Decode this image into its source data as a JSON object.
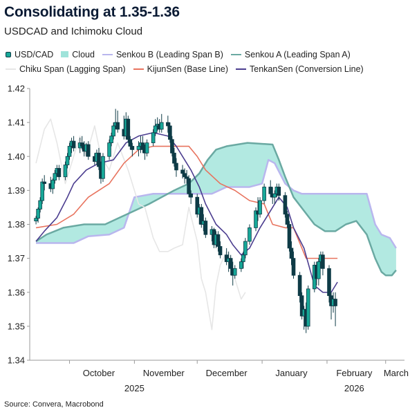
{
  "title": "Consolidating at 1.35-1.36",
  "subtitle": "USDCAD and Ichimoku Cloud",
  "source": "Source: Convera, Macrobond",
  "legend": [
    {
      "label": "USD/CAD",
      "kind": "candle",
      "color": "#17a898"
    },
    {
      "label": "Cloud",
      "kind": "fill",
      "color": "#9fe3da"
    },
    {
      "label": "Senkou B (Leading Span B)",
      "kind": "line",
      "color": "#b9b6ee"
    },
    {
      "label": "Senkou A (Leading Span A)",
      "kind": "line",
      "color": "#6aa9a2"
    },
    {
      "label": "Chiku Span (Lagging Span)",
      "kind": "line",
      "color": "#e6e6e6"
    },
    {
      "label": "KijunSen (Base Line)",
      "kind": "line",
      "color": "#e8735e"
    },
    {
      "label": "TenkanSen (Conversion Line)",
      "kind": "line",
      "color": "#4b3d8f"
    }
  ],
  "chart_data": {
    "type": "candlestick",
    "ylim": [
      1.34,
      1.42
    ],
    "yticks": [
      1.34,
      1.35,
      1.36,
      1.37,
      1.38,
      1.39,
      1.4,
      1.41,
      1.42
    ],
    "ytick_labels": [
      "1.34",
      "1.35",
      "1.36",
      "1.37",
      "1.38",
      "1.39",
      "1.40",
      "1.41",
      "1.42"
    ],
    "xlim": [
      "2025-09-12",
      "2026-03-10"
    ],
    "x_month_ticks": [
      "2025-10-01",
      "2025-11-01",
      "2025-12-01",
      "2026-01-01",
      "2026-02-01",
      "2026-03-01"
    ],
    "x_month_labels": [
      {
        "label": "October",
        "date": "2025-10-15"
      },
      {
        "label": "November",
        "date": "2025-11-15"
      },
      {
        "label": "December",
        "date": "2025-12-15"
      },
      {
        "label": "January",
        "date": "2026-01-15"
      },
      {
        "label": "February",
        "date": "2026-02-14"
      },
      {
        "label": "March",
        "date": "2026-03-06"
      }
    ],
    "x_year_labels": [
      {
        "label": "2025",
        "date": "2025-11-01"
      },
      {
        "label": "2026",
        "date": "2026-02-14"
      }
    ],
    "candles": [
      [
        "2025-09-15",
        1.381,
        1.3825,
        1.38,
        1.3818
      ],
      [
        "2025-09-16",
        1.3818,
        1.385,
        1.3805,
        1.3845
      ],
      [
        "2025-09-17",
        1.3845,
        1.388,
        1.3835,
        1.387
      ],
      [
        "2025-09-18",
        1.387,
        1.3935,
        1.386,
        1.3925
      ],
      [
        "2025-09-19",
        1.3925,
        1.3945,
        1.39,
        1.392
      ],
      [
        "2025-09-22",
        1.392,
        1.394,
        1.3895,
        1.3905
      ],
      [
        "2025-09-23",
        1.3905,
        1.3935,
        1.389,
        1.393
      ],
      [
        "2025-09-24",
        1.393,
        1.396,
        1.392,
        1.395
      ],
      [
        "2025-09-25",
        1.395,
        1.3975,
        1.394,
        1.3965
      ],
      [
        "2025-09-26",
        1.3965,
        1.3975,
        1.393,
        1.394
      ],
      [
        "2025-09-29",
        1.394,
        1.3985,
        1.393,
        1.3975
      ],
      [
        "2025-09-30",
        1.3975,
        1.401,
        1.3965,
        1.4
      ],
      [
        "2025-10-01",
        1.4,
        1.404,
        1.399,
        1.403
      ],
      [
        "2025-10-02",
        1.403,
        1.4055,
        1.401,
        1.4045
      ],
      [
        "2025-10-03",
        1.4045,
        1.406,
        1.4015,
        1.4025
      ],
      [
        "2025-10-06",
        1.4025,
        1.4055,
        1.401,
        1.404
      ],
      [
        "2025-10-07",
        1.404,
        1.406,
        1.402,
        1.403
      ],
      [
        "2025-10-08",
        1.403,
        1.4045,
        1.4,
        1.4015
      ],
      [
        "2025-10-09",
        1.4015,
        1.404,
        1.4,
        1.4035
      ],
      [
        "2025-10-10",
        1.4035,
        1.4045,
        1.399,
        1.4
      ],
      [
        "2025-10-13",
        1.4,
        1.401,
        1.3975,
        1.3985
      ],
      [
        "2025-10-14",
        1.3985,
        1.402,
        1.3975,
        1.401
      ],
      [
        "2025-10-15",
        1.401,
        1.4025,
        1.396,
        1.397
      ],
      [
        "2025-10-16",
        1.397,
        1.3985,
        1.392,
        1.3935
      ],
      [
        "2025-10-17",
        1.3935,
        1.401,
        1.3925,
        1.4
      ],
      [
        "2025-10-20",
        1.4,
        1.405,
        1.399,
        1.404
      ],
      [
        "2025-10-21",
        1.404,
        1.407,
        1.403,
        1.406
      ],
      [
        "2025-10-22",
        1.406,
        1.41,
        1.405,
        1.409
      ],
      [
        "2025-10-23",
        1.409,
        1.414,
        1.408,
        1.41
      ],
      [
        "2025-10-24",
        1.41,
        1.4135,
        1.407,
        1.408
      ],
      [
        "2025-10-27",
        1.408,
        1.412,
        1.405,
        1.406
      ],
      [
        "2025-10-28",
        1.406,
        1.413,
        1.405,
        1.411
      ],
      [
        "2025-10-29",
        1.411,
        1.412,
        1.404,
        1.405
      ],
      [
        "2025-10-30",
        1.405,
        1.406,
        1.402,
        1.403
      ],
      [
        "2025-10-31",
        1.403,
        1.404,
        1.4,
        1.402
      ],
      [
        "2025-11-03",
        1.402,
        1.4045,
        1.4,
        1.403
      ],
      [
        "2025-11-04",
        1.403,
        1.406,
        1.401,
        1.404
      ],
      [
        "2025-11-05",
        1.404,
        1.406,
        1.401,
        1.402
      ],
      [
        "2025-11-06",
        1.402,
        1.4035,
        1.399,
        1.401
      ],
      [
        "2025-11-07",
        1.401,
        1.405,
        1.4,
        1.404
      ],
      [
        "2025-11-10",
        1.404,
        1.408,
        1.403,
        1.407
      ],
      [
        "2025-11-11",
        1.407,
        1.411,
        1.406,
        1.409
      ],
      [
        "2025-11-12",
        1.409,
        1.4115,
        1.4075,
        1.4095
      ],
      [
        "2025-11-13",
        1.4095,
        1.411,
        1.407,
        1.408
      ],
      [
        "2025-11-14",
        1.408,
        1.4125,
        1.407,
        1.41
      ],
      [
        "2025-11-17",
        1.41,
        1.412,
        1.407,
        1.409
      ],
      [
        "2025-11-18",
        1.409,
        1.41,
        1.404,
        1.405
      ],
      [
        "2025-11-19",
        1.405,
        1.406,
        1.4,
        1.401
      ],
      [
        "2025-11-20",
        1.401,
        1.4025,
        1.397,
        1.398
      ],
      [
        "2025-11-21",
        1.398,
        1.3995,
        1.394,
        1.396
      ],
      [
        "2025-11-24",
        1.396,
        1.3975,
        1.3935,
        1.395
      ],
      [
        "2025-11-25",
        1.395,
        1.3965,
        1.392,
        1.394
      ],
      [
        "2025-11-26",
        1.394,
        1.396,
        1.392,
        1.3935
      ],
      [
        "2025-11-27",
        1.3935,
        1.3945,
        1.388,
        1.389
      ],
      [
        "2025-11-28",
        1.389,
        1.39,
        1.386,
        1.388
      ],
      [
        "2025-12-01",
        1.388,
        1.389,
        1.382,
        1.383
      ],
      [
        "2025-12-02",
        1.383,
        1.386,
        1.38,
        1.385
      ],
      [
        "2025-12-03",
        1.385,
        1.386,
        1.379,
        1.38
      ],
      [
        "2025-12-04",
        1.38,
        1.383,
        1.378,
        1.381
      ],
      [
        "2025-12-05",
        1.381,
        1.382,
        1.376,
        1.377
      ],
      [
        "2025-12-08",
        1.377,
        1.3795,
        1.375,
        1.3785
      ],
      [
        "2025-12-09",
        1.3785,
        1.379,
        1.373,
        1.374
      ],
      [
        "2025-12-10",
        1.374,
        1.378,
        1.373,
        1.377
      ],
      [
        "2025-12-11",
        1.377,
        1.378,
        1.372,
        1.3735
      ],
      [
        "2025-12-12",
        1.3735,
        1.375,
        1.37,
        1.371
      ],
      [
        "2025-12-15",
        1.371,
        1.373,
        1.368,
        1.369
      ],
      [
        "2025-12-16",
        1.369,
        1.372,
        1.366,
        1.37
      ],
      [
        "2025-12-17",
        1.37,
        1.371,
        1.365,
        1.367
      ],
      [
        "2025-12-18",
        1.367,
        1.369,
        1.362,
        1.365
      ],
      [
        "2025-12-19",
        1.365,
        1.368,
        1.364,
        1.367
      ],
      [
        "2025-12-22",
        1.367,
        1.37,
        1.366,
        1.369
      ],
      [
        "2025-12-23",
        1.369,
        1.372,
        1.367,
        1.371
      ],
      [
        "2025-12-24",
        1.371,
        1.376,
        1.37,
        1.375
      ],
      [
        "2025-12-26",
        1.375,
        1.38,
        1.374,
        1.379
      ],
      [
        "2025-12-29",
        1.379,
        1.385,
        1.378,
        1.384
      ],
      [
        "2025-12-30",
        1.384,
        1.388,
        1.381,
        1.383
      ],
      [
        "2025-12-31",
        1.383,
        1.388,
        1.382,
        1.387
      ],
      [
        "2026-01-02",
        1.387,
        1.392,
        1.386,
        1.391
      ],
      [
        "2026-01-05",
        1.391,
        1.393,
        1.388,
        1.389
      ],
      [
        "2026-01-06",
        1.389,
        1.391,
        1.386,
        1.388
      ],
      [
        "2026-01-07",
        1.388,
        1.39,
        1.386,
        1.389
      ],
      [
        "2026-01-08",
        1.389,
        1.392,
        1.388,
        1.391
      ],
      [
        "2026-01-09",
        1.391,
        1.392,
        1.387,
        1.3885
      ],
      [
        "2026-01-12",
        1.3885,
        1.3895,
        1.382,
        1.383
      ],
      [
        "2026-01-13",
        1.383,
        1.384,
        1.379,
        1.38
      ],
      [
        "2026-01-14",
        1.38,
        1.381,
        1.372,
        1.373
      ],
      [
        "2026-01-15",
        1.373,
        1.375,
        1.368,
        1.37
      ],
      [
        "2026-01-16",
        1.37,
        1.372,
        1.364,
        1.365
      ],
      [
        "2026-01-19",
        1.365,
        1.366,
        1.357,
        1.359
      ],
      [
        "2026-01-20",
        1.359,
        1.36,
        1.352,
        1.353
      ],
      [
        "2026-01-21",
        1.353,
        1.356,
        1.349,
        1.355
      ],
      [
        "2026-01-22",
        1.355,
        1.357,
        1.348,
        1.35
      ],
      [
        "2026-01-23",
        1.35,
        1.362,
        1.349,
        1.361
      ],
      [
        "2026-01-26",
        1.361,
        1.369,
        1.36,
        1.368
      ],
      [
        "2026-01-27",
        1.368,
        1.369,
        1.362,
        1.364
      ],
      [
        "2026-01-28",
        1.364,
        1.37,
        1.362,
        1.369
      ],
      [
        "2026-01-29",
        1.369,
        1.372,
        1.367,
        1.371
      ],
      [
        "2026-01-30",
        1.371,
        1.372,
        1.365,
        1.367
      ],
      [
        "2026-02-02",
        1.367,
        1.368,
        1.357,
        1.359
      ],
      [
        "2026-02-03",
        1.359,
        1.36,
        1.352,
        1.356
      ],
      [
        "2026-02-04",
        1.356,
        1.36,
        1.354,
        1.358
      ],
      [
        "2026-02-05",
        1.358,
        1.36,
        1.35,
        1.356
      ]
    ],
    "tenkan": [
      [
        "2025-09-15",
        1.375
      ],
      [
        "2025-09-19",
        1.378
      ],
      [
        "2025-09-25",
        1.382
      ],
      [
        "2025-09-30",
        1.388
      ],
      [
        "2025-10-03",
        1.392
      ],
      [
        "2025-10-09",
        1.396
      ],
      [
        "2025-10-15",
        1.398
      ],
      [
        "2025-10-22",
        1.399
      ],
      [
        "2025-10-28",
        1.404
      ],
      [
        "2025-11-03",
        1.406
      ],
      [
        "2025-11-10",
        1.407
      ],
      [
        "2025-11-17",
        1.406
      ],
      [
        "2025-11-21",
        1.403
      ],
      [
        "2025-11-25",
        1.399
      ],
      [
        "2025-11-28",
        1.396
      ],
      [
        "2025-12-02",
        1.391
      ],
      [
        "2025-12-05",
        1.386
      ],
      [
        "2025-12-10",
        1.38
      ],
      [
        "2025-12-15",
        1.377
      ],
      [
        "2025-12-18",
        1.374
      ],
      [
        "2025-12-22",
        1.371
      ],
      [
        "2025-12-26",
        1.373
      ],
      [
        "2025-12-31",
        1.379
      ],
      [
        "2026-01-06",
        1.385
      ],
      [
        "2026-01-09",
        1.388
      ],
      [
        "2026-01-13",
        1.385
      ],
      [
        "2026-01-16",
        1.379
      ],
      [
        "2026-01-21",
        1.373
      ],
      [
        "2026-01-26",
        1.362
      ],
      [
        "2026-01-30",
        1.36
      ],
      [
        "2026-02-03",
        1.36
      ],
      [
        "2026-02-06",
        1.363
      ]
    ],
    "kijun": [
      [
        "2025-09-15",
        1.379
      ],
      [
        "2025-09-25",
        1.38
      ],
      [
        "2025-10-03",
        1.383
      ],
      [
        "2025-10-10",
        1.388
      ],
      [
        "2025-10-20",
        1.392
      ],
      [
        "2025-10-27",
        1.398
      ],
      [
        "2025-11-03",
        1.402
      ],
      [
        "2025-11-10",
        1.403
      ],
      [
        "2025-11-20",
        1.403
      ],
      [
        "2025-11-27",
        1.403
      ],
      [
        "2025-12-01",
        1.4
      ],
      [
        "2025-12-05",
        1.396
      ],
      [
        "2025-12-12",
        1.392
      ],
      [
        "2025-12-19",
        1.39
      ],
      [
        "2025-12-26",
        1.387
      ],
      [
        "2026-01-02",
        1.386
      ],
      [
        "2026-01-06",
        1.38
      ],
      [
        "2026-01-12",
        1.379
      ],
      [
        "2026-01-16",
        1.379
      ],
      [
        "2026-01-22",
        1.37
      ],
      [
        "2026-02-06",
        1.37
      ]
    ],
    "chiku": [
      [
        "2025-09-15",
        1.398
      ],
      [
        "2025-09-19",
        1.408
      ],
      [
        "2025-09-22",
        1.411
      ],
      [
        "2025-09-25",
        1.404
      ],
      [
        "2025-09-29",
        1.392
      ],
      [
        "2025-10-02",
        1.398
      ],
      [
        "2025-10-06",
        1.406
      ],
      [
        "2025-10-09",
        1.4
      ],
      [
        "2025-10-13",
        1.409
      ],
      [
        "2025-10-16",
        1.4
      ],
      [
        "2025-10-20",
        1.396
      ],
      [
        "2025-10-24",
        1.404
      ],
      [
        "2025-10-29",
        1.396
      ],
      [
        "2025-11-03",
        1.386
      ],
      [
        "2025-11-06",
        1.385
      ],
      [
        "2025-11-10",
        1.376
      ],
      [
        "2025-11-13",
        1.372
      ],
      [
        "2025-11-17",
        1.372
      ],
      [
        "2025-11-20",
        1.373
      ],
      [
        "2025-11-24",
        1.374
      ],
      [
        "2025-11-27",
        1.385
      ],
      [
        "2025-12-01",
        1.375
      ],
      [
        "2025-12-03",
        1.364
      ],
      [
        "2025-12-05",
        1.36
      ],
      [
        "2025-12-08",
        1.349
      ],
      [
        "2025-12-10",
        1.362
      ],
      [
        "2025-12-12",
        1.368
      ],
      [
        "2025-12-15",
        1.372
      ],
      [
        "2025-12-17",
        1.37
      ],
      [
        "2025-12-19",
        1.364
      ],
      [
        "2025-12-22",
        1.358
      ],
      [
        "2025-12-24",
        1.36
      ]
    ],
    "senkou_a": [
      [
        "2025-09-15",
        1.375
      ],
      [
        "2025-09-20",
        1.377
      ],
      [
        "2025-09-28",
        1.379
      ],
      [
        "2025-10-08",
        1.38
      ],
      [
        "2025-10-18",
        1.38
      ],
      [
        "2025-10-25",
        1.382
      ],
      [
        "2025-11-01",
        1.384
      ],
      [
        "2025-11-08",
        1.386
      ],
      [
        "2025-11-14",
        1.388
      ],
      [
        "2025-11-20",
        1.39
      ],
      [
        "2025-11-27",
        1.392
      ],
      [
        "2025-12-02",
        1.395
      ],
      [
        "2025-12-06",
        1.399
      ],
      [
        "2025-12-10",
        1.402
      ],
      [
        "2025-12-15",
        1.403
      ],
      [
        "2025-12-25",
        1.404
      ],
      [
        "2026-01-06",
        1.4035
      ],
      [
        "2026-01-09",
        1.399
      ],
      [
        "2026-01-12",
        1.394
      ],
      [
        "2026-01-16",
        1.388
      ],
      [
        "2026-01-21",
        1.384
      ],
      [
        "2026-01-26",
        1.38
      ],
      [
        "2026-01-31",
        1.378
      ],
      [
        "2026-02-05",
        1.378
      ],
      [
        "2026-02-10",
        1.38
      ],
      [
        "2026-02-15",
        1.381
      ],
      [
        "2026-02-20",
        1.377
      ],
      [
        "2026-02-24",
        1.37
      ],
      [
        "2026-02-27",
        1.366
      ],
      [
        "2026-03-01",
        1.365
      ],
      [
        "2026-03-04",
        1.365
      ],
      [
        "2026-03-06",
        1.3665
      ]
    ],
    "senkou_b": [
      [
        "2025-09-15",
        1.3745
      ],
      [
        "2025-10-03",
        1.3745
      ],
      [
        "2025-10-10",
        1.3765
      ],
      [
        "2025-10-20",
        1.377
      ],
      [
        "2025-10-27",
        1.379
      ],
      [
        "2025-11-01",
        1.388
      ],
      [
        "2025-11-10",
        1.389
      ],
      [
        "2025-12-02",
        1.389
      ],
      [
        "2025-12-08",
        1.389
      ],
      [
        "2025-12-15",
        1.391
      ],
      [
        "2025-12-26",
        1.391
      ],
      [
        "2026-01-01",
        1.392
      ],
      [
        "2026-01-04",
        1.399
      ],
      [
        "2026-01-07",
        1.398
      ],
      [
        "2026-01-12",
        1.392
      ],
      [
        "2026-01-16",
        1.39
      ],
      [
        "2026-01-20",
        1.389
      ],
      [
        "2026-02-20",
        1.389
      ],
      [
        "2026-02-24",
        1.38
      ],
      [
        "2026-02-27",
        1.377
      ],
      [
        "2026-03-03",
        1.376
      ],
      [
        "2026-03-06",
        1.373
      ]
    ]
  }
}
